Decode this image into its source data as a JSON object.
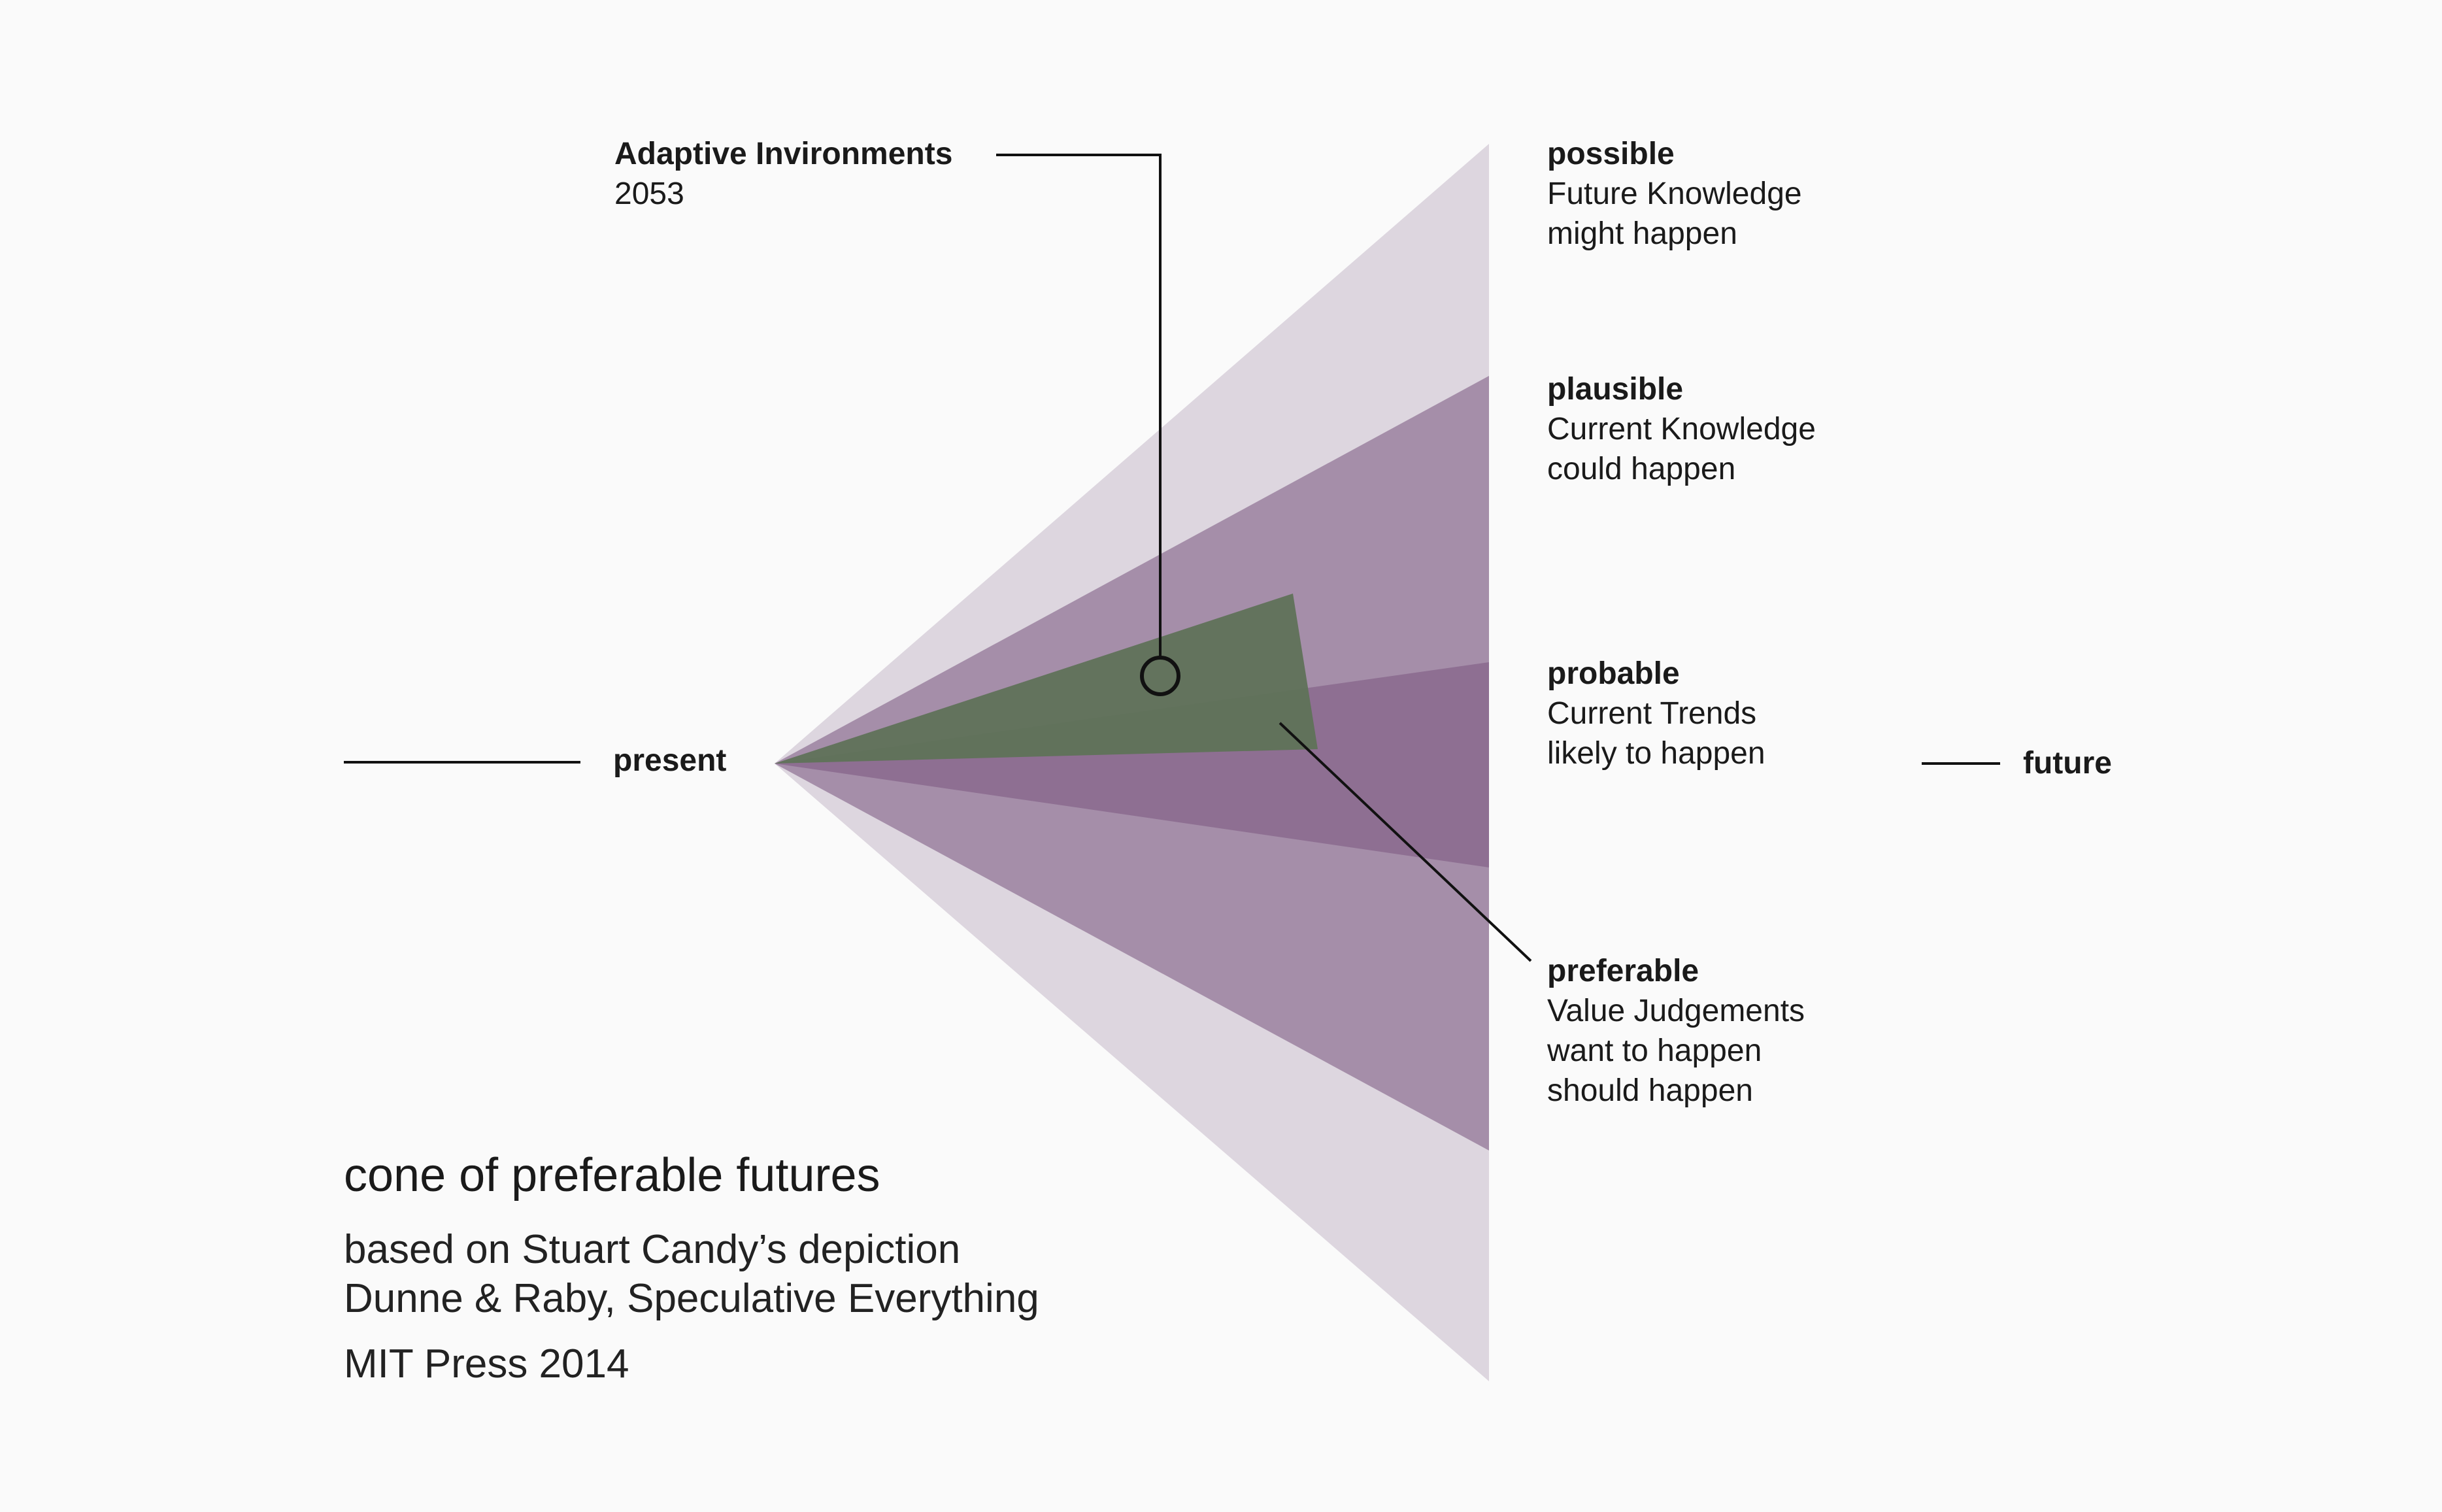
{
  "title": "cone of preferable futures",
  "source": [
    "based on Stuart Candy’s depiction",
    "Dunne & Raby, Speculative Everything",
    "MIT Press 2014"
  ],
  "axis": {
    "start_label": "present",
    "end_label": "future"
  },
  "callout": {
    "title": "Adaptive Invironments",
    "year": "2053"
  },
  "cones": [
    {
      "key": "possible",
      "title": "possible",
      "lines": [
        "Future Knowledge",
        "might happen"
      ]
    },
    {
      "key": "plausible",
      "title": "plausible",
      "lines": [
        "Current Knowledge",
        "could happen"
      ]
    },
    {
      "key": "probable",
      "title": "probable",
      "lines": [
        "Current Trends",
        "likely to happen"
      ]
    },
    {
      "key": "preferable",
      "title": "preferable",
      "lines": [
        "Value Judgements",
        "want to happen",
        "should happen"
      ]
    }
  ],
  "colors": {
    "background": "#fafafa",
    "possible": "#ddd6df",
    "plausible": "#9f88a4",
    "probable": "#8a6a8e",
    "preferable": "#5f7259",
    "line": "#111111"
  }
}
